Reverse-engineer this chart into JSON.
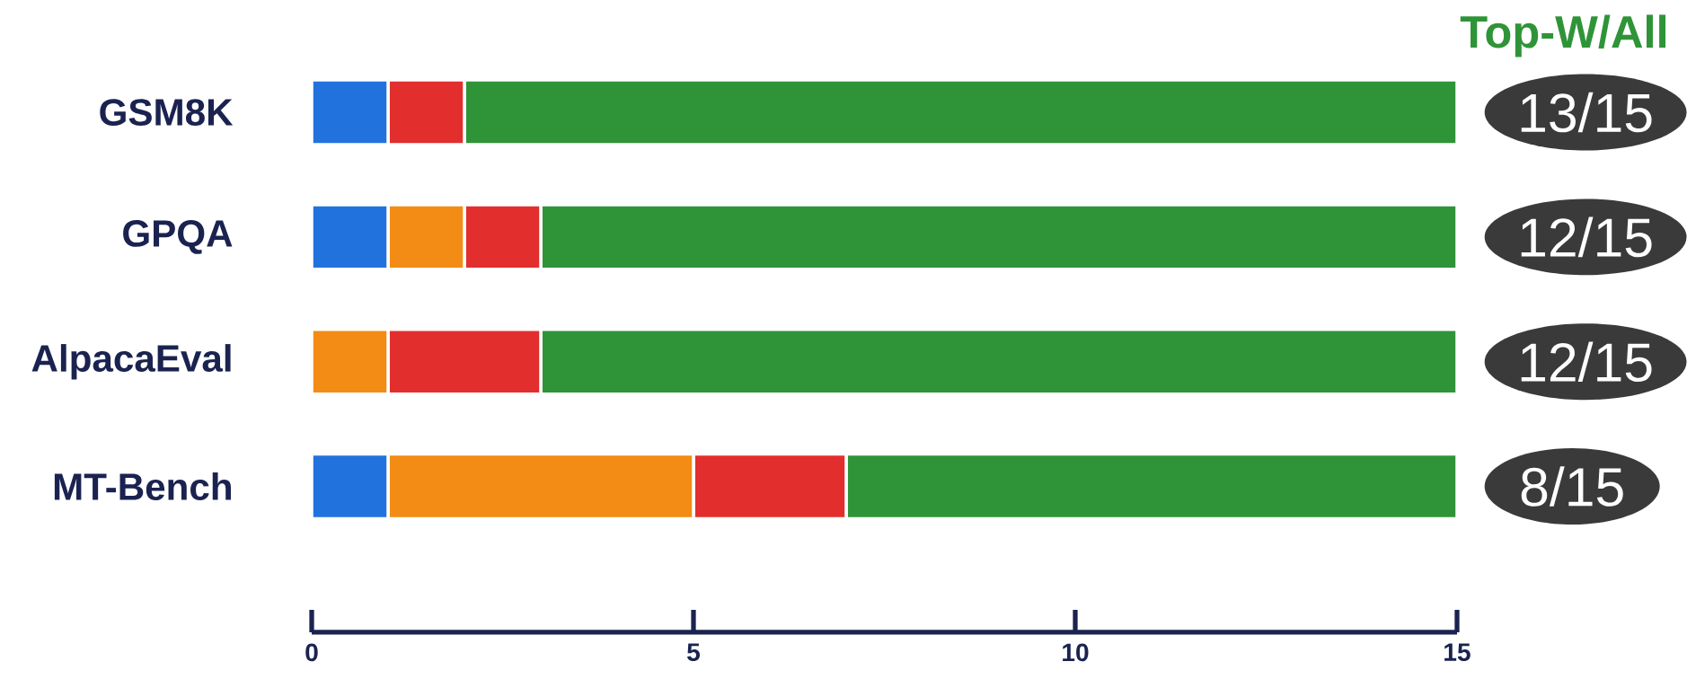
{
  "chart_data": {
    "type": "bar",
    "orientation": "horizontal",
    "stacked": true,
    "categories": [
      "GSM8K",
      "GPQA",
      "AlpacaEval",
      "MT-Bench"
    ],
    "series": [
      {
        "color": "#2272de",
        "values": [
          1,
          1,
          0,
          1
        ]
      },
      {
        "color": "#f28c14",
        "values": [
          0,
          1,
          1,
          4
        ]
      },
      {
        "color": "#e32e2e",
        "values": [
          1,
          1,
          2,
          2
        ]
      },
      {
        "color": "#2f9438",
        "values": [
          13,
          12,
          12,
          8
        ],
        "value_labels": [
          "13/15",
          "12/15",
          "12/15",
          "8/15"
        ]
      }
    ],
    "xlim": [
      0,
      15
    ],
    "xticks": [
      0,
      5,
      10,
      15
    ],
    "annotations": [
      "Top-W/All"
    ]
  }
}
